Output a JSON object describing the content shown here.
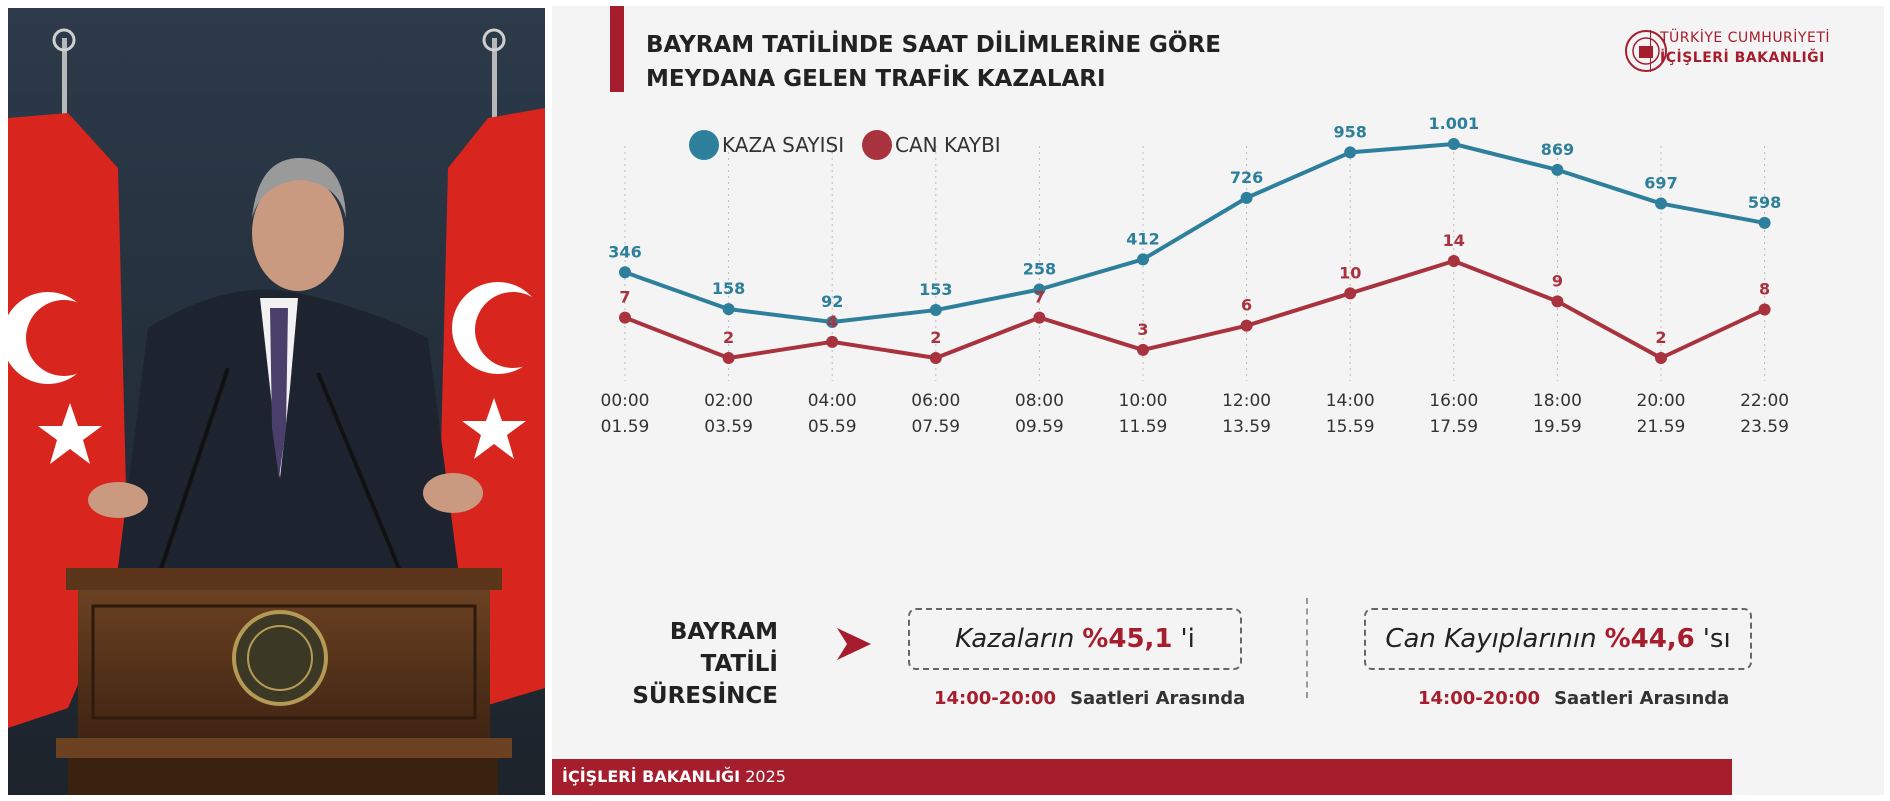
{
  "slide": {
    "title": "BAYRAM TATİLİNDE SAAT DİLİMLERİNE GÖRE\nMEYDANA GELEN TRAFİK KAZALARI",
    "ministry": {
      "line1": "TÜRKİYE CUMHURİYETİ",
      "line2": "İÇİŞLERİ BAKANLIĞI"
    },
    "footer": {
      "ministry": "İÇİŞLERİ BAKANLIĞI",
      "year": "2025"
    },
    "summary": {
      "label": "BAYRAM TATİLİ\nSÜRESİNCE",
      "callout1": {
        "prefix": "Kazaların",
        "value": "%45,1",
        "suffix": "'i",
        "time": "14:00-20:00",
        "note": "Saatleri Arasında"
      },
      "callout2": {
        "prefix": "Can Kayıplarının",
        "value": "%44,6",
        "suffix": "'sı",
        "time": "14:00-20:00",
        "note": "Saatleri Arasında"
      }
    }
  },
  "colors": {
    "accent": "#a61e2e",
    "kaza": "#2e7f9c",
    "can": "#a8333e"
  },
  "chart_data": {
    "type": "line",
    "categories": [
      [
        "00:00",
        "01.59"
      ],
      [
        "02:00",
        "03.59"
      ],
      [
        "04:00",
        "05.59"
      ],
      [
        "06:00",
        "07.59"
      ],
      [
        "08:00",
        "09.59"
      ],
      [
        "10:00",
        "11.59"
      ],
      [
        "12:00",
        "13.59"
      ],
      [
        "14:00",
        "15.59"
      ],
      [
        "16:00",
        "17.59"
      ],
      [
        "18:00",
        "19.59"
      ],
      [
        "20:00",
        "21.59"
      ],
      [
        "22:00",
        "23.59"
      ]
    ],
    "series": [
      {
        "name": "KAZA SAYISI",
        "values": [
          346,
          158,
          92,
          153,
          258,
          412,
          726,
          958,
          1001,
          869,
          697,
          598
        ],
        "labels": [
          "346",
          "158",
          "92",
          "153",
          "258",
          "412",
          "726",
          "958",
          "1.001",
          "869",
          "697",
          "598"
        ]
      },
      {
        "name": "CAN KAYBI",
        "values": [
          7,
          2,
          4,
          2,
          7,
          3,
          6,
          10,
          14,
          9,
          2,
          8
        ],
        "labels": [
          "7",
          "2",
          "4",
          "2",
          "7",
          "3",
          "6",
          "10",
          "14",
          "9",
          "2",
          "8"
        ]
      }
    ],
    "legend": "top-left",
    "grid": "vertical dotted"
  }
}
